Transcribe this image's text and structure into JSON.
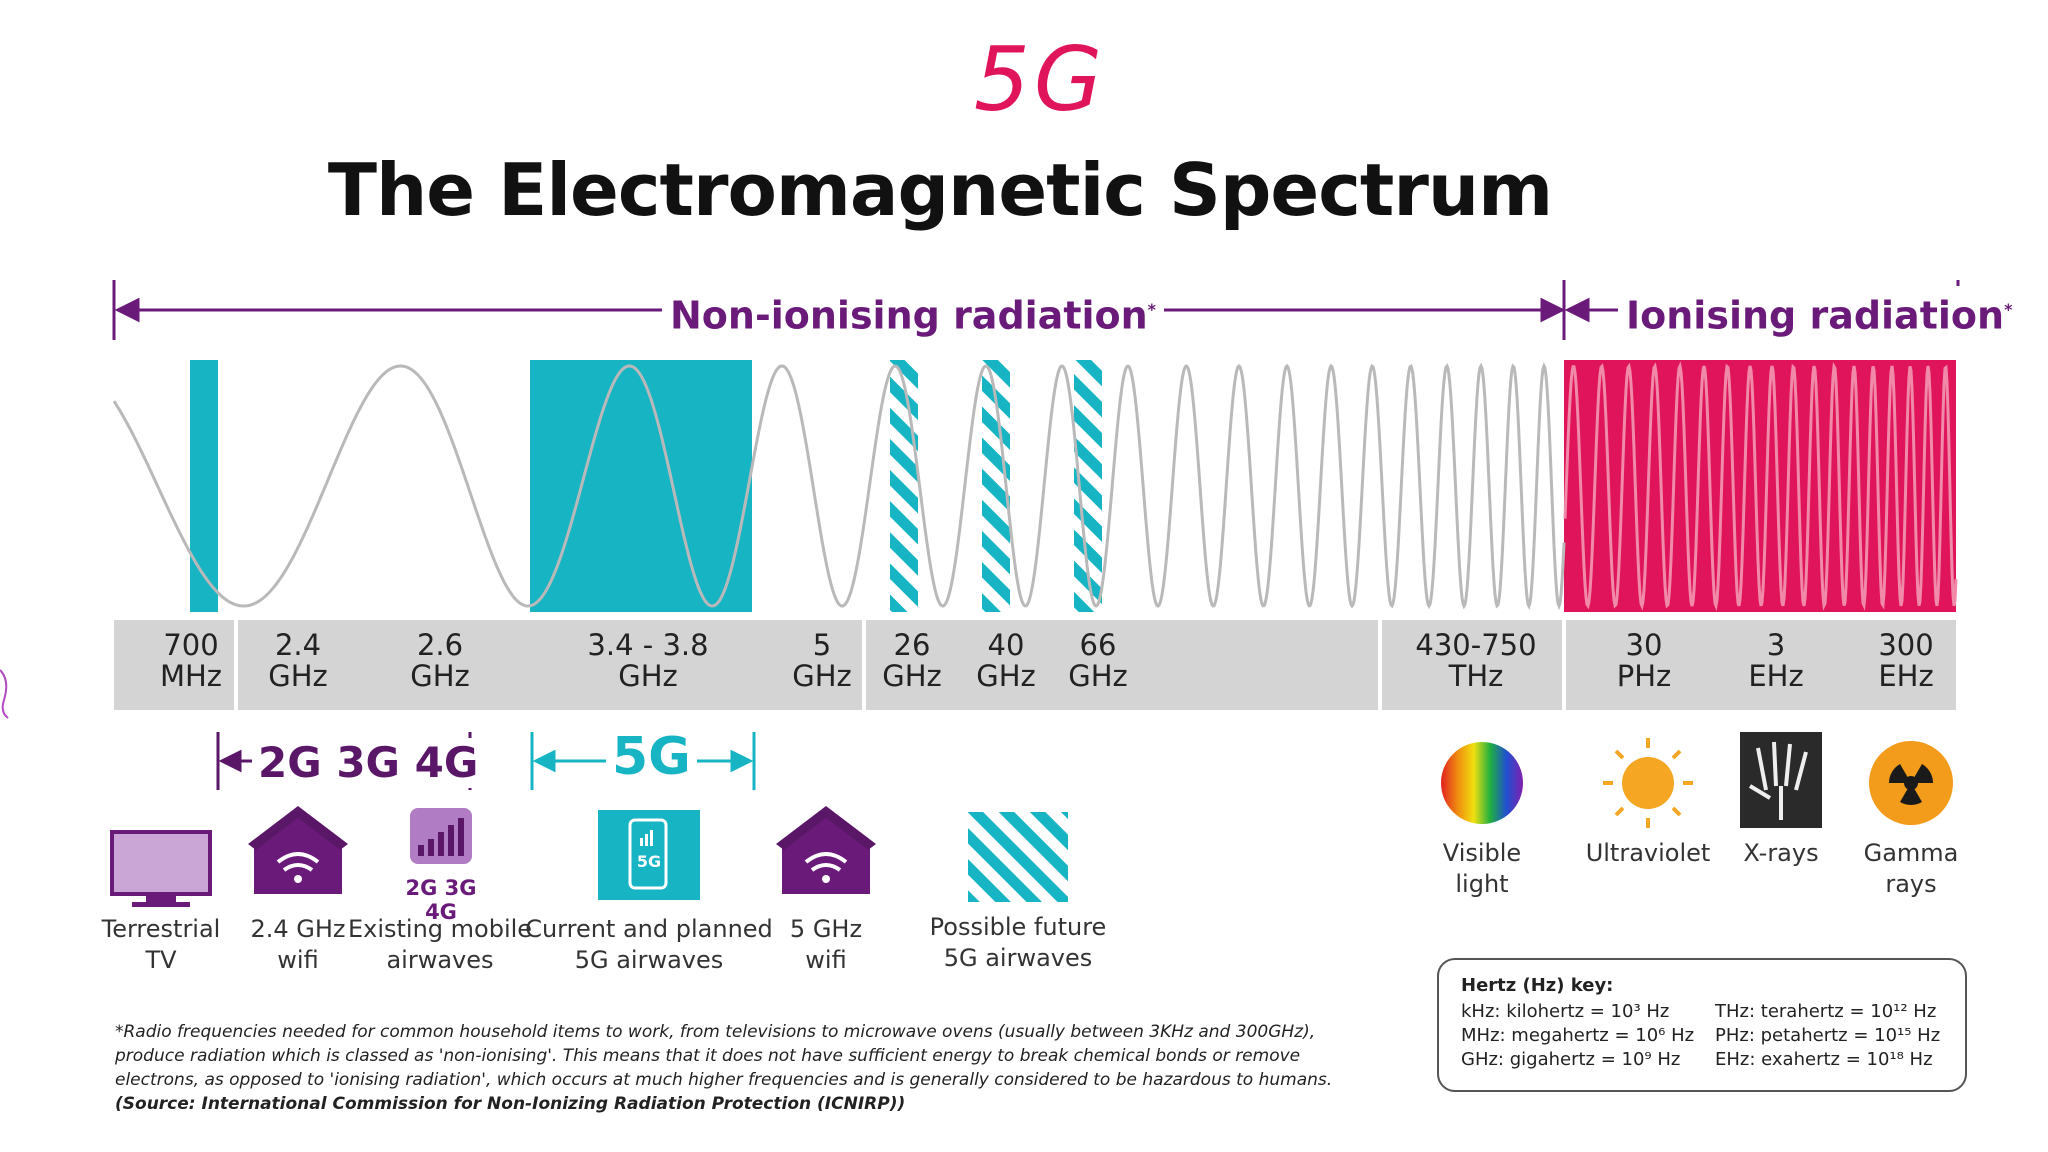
{
  "hand_title": "5G",
  "title": "The Electromagnetic Spectrum",
  "radiation": {
    "non_ionising": "Non-ionising radiation",
    "ionising": "Ionising radiation",
    "marker": "*"
  },
  "frequencies": [
    {
      "value": "700",
      "unit": "MHz"
    },
    {
      "value": "2.4",
      "unit": "GHz"
    },
    {
      "value": "2.6",
      "unit": "GHz"
    },
    {
      "value": "3.4 - 3.8",
      "unit": "GHz"
    },
    {
      "value": "5",
      "unit": "GHz"
    },
    {
      "value": "26",
      "unit": "GHz"
    },
    {
      "value": "40",
      "unit": "GHz"
    },
    {
      "value": "66",
      "unit": "GHz"
    },
    {
      "value": "430-750",
      "unit": "THz"
    },
    {
      "value": "30",
      "unit": "PHz"
    },
    {
      "value": "3",
      "unit": "EHz"
    },
    {
      "value": "300",
      "unit": "EHz"
    }
  ],
  "bands": {
    "legacy": "2G 3G 4G",
    "fiveg": "5G"
  },
  "items": [
    {
      "line1": "Terrestrial",
      "line2": "TV",
      "icon": "tv-icon"
    },
    {
      "line1": "2.4 GHz",
      "line2": "wifi",
      "icon": "house-wifi-icon"
    },
    {
      "line1": "Existing mobile",
      "line2": "airwaves",
      "icon": "signal-bars-icon",
      "badge": "2G 3G 4G"
    },
    {
      "line1": "Current and planned",
      "line2": "5G airwaves",
      "icon": "phone-5g-icon",
      "badge": "5G"
    },
    {
      "line1": "5 GHz",
      "line2": "wifi",
      "icon": "house-wifi-icon"
    },
    {
      "line1": "Possible future",
      "line2": "5G airwaves",
      "icon": "hatched-square-icon"
    }
  ],
  "radiation_types": [
    {
      "line1": "Visible",
      "line2": "light",
      "icon": "rainbow-icon"
    },
    {
      "line1": "Ultraviolet",
      "line2": "",
      "icon": "sun-icon"
    },
    {
      "line1": "X-rays",
      "line2": "",
      "icon": "xray-hand-icon"
    },
    {
      "line1": "Gamma",
      "line2": "rays",
      "icon": "radiation-icon"
    }
  ],
  "footnote": {
    "text": "*Radio frequencies needed for common household items to work, from televisions to microwave ovens (usually between 3KHz and 300GHz), produce radiation which is classed as 'non-ionising'. This means that it does not have sufficient energy to break chemical bonds or remove electrons, as opposed to 'ionising radiation', which occurs at much higher frequencies and is generally considered to be hazardous to humans.",
    "source": "(Source: International Commission for Non-Ionizing Radiation Protection (ICNIRP))"
  },
  "hertz_key": {
    "title": "Hertz (Hz) key:",
    "entries": [
      "kHz: kilohertz = 10³ Hz",
      "MHz: megahertz = 10⁶ Hz",
      "GHz: gigahertz = 10⁹ Hz",
      "THz: terahertz = 10¹² Hz",
      "PHz: petahertz = 10¹⁵ Hz",
      "EHz: exahertz = 10¹⁸ Hz"
    ]
  },
  "colors": {
    "teal": "#17b4c4",
    "magenta": "#e0145a",
    "purple": "#6a1b7a",
    "grey_bar": "#d4d4d4"
  }
}
